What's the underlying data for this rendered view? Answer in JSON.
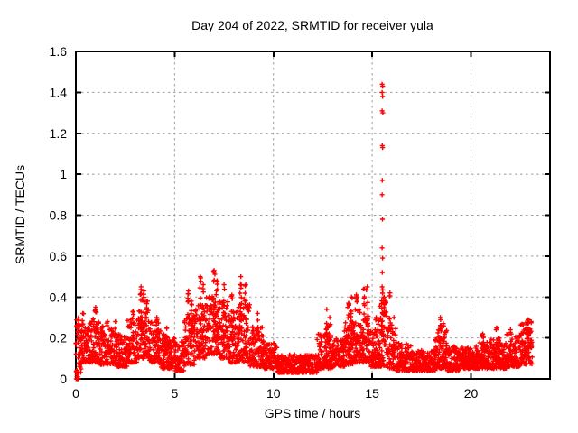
{
  "chart_data": {
    "type": "scatter",
    "title": "Day 204 of 2022, SRMTID for receiver yula",
    "xlabel": "GPS time / hours",
    "ylabel": "SRMTID / TECUs",
    "xlim": [
      0,
      24
    ],
    "ylim": [
      0,
      1.6
    ],
    "xticks": {
      "values": [
        0,
        5,
        10,
        15,
        20
      ],
      "labels": [
        "0",
        "5",
        "10",
        "15",
        "20"
      ]
    },
    "yticks": {
      "values": [
        0,
        0.2,
        0.4,
        0.6,
        0.8,
        1.0,
        1.2,
        1.4,
        1.6
      ],
      "labels": [
        "0",
        "0.2",
        "0.4",
        "0.6",
        "0.8",
        "1",
        "1.2",
        "1.4",
        "1.6"
      ]
    },
    "grid": "dashed",
    "legend": "none",
    "marker": {
      "shape": "plus",
      "color": "#ff0000",
      "size": 5
    },
    "colors": {
      "axis": "#000000",
      "grid": "#9e9e9e",
      "background": "#ffffff",
      "text": "#000000"
    },
    "seed": 20220204,
    "sample_step_hours": 0.011,
    "data_end_hour": 23.1,
    "baseline_bands": [
      [
        0.0,
        0.3,
        0.03,
        0.3
      ],
      [
        0.3,
        0.8,
        0.08,
        0.28
      ],
      [
        0.8,
        1.2,
        0.08,
        0.3
      ],
      [
        1.2,
        2.0,
        0.07,
        0.26
      ],
      [
        2.0,
        2.6,
        0.06,
        0.22
      ],
      [
        2.6,
        3.1,
        0.08,
        0.3
      ],
      [
        3.1,
        3.7,
        0.1,
        0.4
      ],
      [
        3.7,
        4.3,
        0.08,
        0.28
      ],
      [
        4.3,
        5.0,
        0.05,
        0.22
      ],
      [
        5.0,
        5.5,
        0.04,
        0.2
      ],
      [
        5.5,
        6.0,
        0.07,
        0.32
      ],
      [
        6.0,
        6.6,
        0.1,
        0.38
      ],
      [
        6.6,
        7.2,
        0.12,
        0.42
      ],
      [
        7.2,
        7.7,
        0.1,
        0.38
      ],
      [
        7.7,
        8.2,
        0.08,
        0.33
      ],
      [
        8.2,
        8.8,
        0.08,
        0.4
      ],
      [
        8.8,
        9.5,
        0.06,
        0.26
      ],
      [
        9.5,
        10.2,
        0.05,
        0.18
      ],
      [
        10.2,
        12.2,
        0.03,
        0.12
      ],
      [
        12.2,
        13.0,
        0.05,
        0.22
      ],
      [
        13.0,
        13.6,
        0.06,
        0.2
      ],
      [
        13.6,
        14.1,
        0.07,
        0.3
      ],
      [
        14.1,
        14.9,
        0.08,
        0.35
      ],
      [
        14.9,
        15.3,
        0.06,
        0.24
      ],
      [
        15.3,
        15.75,
        0.06,
        0.38
      ],
      [
        15.75,
        16.2,
        0.05,
        0.28
      ],
      [
        16.2,
        17.0,
        0.04,
        0.18
      ],
      [
        17.0,
        18.2,
        0.04,
        0.14
      ],
      [
        18.2,
        18.8,
        0.05,
        0.24
      ],
      [
        18.8,
        19.5,
        0.04,
        0.16
      ],
      [
        19.5,
        20.3,
        0.05,
        0.16
      ],
      [
        20.3,
        21.0,
        0.05,
        0.18
      ],
      [
        21.0,
        21.8,
        0.05,
        0.2
      ],
      [
        21.8,
        22.5,
        0.06,
        0.22
      ],
      [
        22.5,
        23.1,
        0.07,
        0.28
      ]
    ],
    "spike_clusters": [
      [
        0.35,
        0.32,
        5
      ],
      [
        1.0,
        0.35,
        7
      ],
      [
        1.6,
        0.28,
        4
      ],
      [
        2.0,
        0.28,
        4
      ],
      [
        2.9,
        0.33,
        6
      ],
      [
        3.3,
        0.45,
        12
      ],
      [
        3.45,
        0.43,
        9
      ],
      [
        3.6,
        0.38,
        7
      ],
      [
        4.1,
        0.3,
        5
      ],
      [
        4.6,
        0.25,
        4
      ],
      [
        5.7,
        0.43,
        9
      ],
      [
        5.85,
        0.38,
        6
      ],
      [
        6.3,
        0.5,
        11
      ],
      [
        6.45,
        0.46,
        8
      ],
      [
        7.0,
        0.53,
        12
      ],
      [
        7.15,
        0.48,
        8
      ],
      [
        7.5,
        0.46,
        9
      ],
      [
        7.9,
        0.41,
        7
      ],
      [
        8.35,
        0.5,
        11
      ],
      [
        8.6,
        0.46,
        9
      ],
      [
        9.2,
        0.32,
        5
      ],
      [
        12.7,
        0.34,
        7
      ],
      [
        12.85,
        0.3,
        5
      ],
      [
        13.8,
        0.37,
        7
      ],
      [
        13.95,
        0.4,
        7
      ],
      [
        14.2,
        0.41,
        7
      ],
      [
        14.6,
        0.44,
        10
      ],
      [
        14.75,
        0.45,
        9
      ],
      [
        15.2,
        0.3,
        5
      ],
      [
        15.5,
        0.45,
        12
      ],
      [
        15.6,
        0.4,
        8
      ],
      [
        15.9,
        0.42,
        7
      ],
      [
        16.1,
        0.3,
        4
      ],
      [
        18.45,
        0.3,
        7
      ],
      [
        18.6,
        0.27,
        5
      ],
      [
        20.6,
        0.22,
        4
      ],
      [
        21.3,
        0.25,
        5
      ],
      [
        22.0,
        0.24,
        4
      ],
      [
        22.9,
        0.29,
        8
      ],
      [
        23.05,
        0.28,
        6
      ]
    ],
    "outlier_points": [
      [
        15.5,
        1.44
      ],
      [
        15.53,
        1.43
      ],
      [
        15.5,
        1.4
      ],
      [
        15.53,
        1.38
      ],
      [
        15.5,
        1.31
      ],
      [
        15.54,
        1.3
      ],
      [
        15.51,
        1.14
      ],
      [
        15.53,
        1.13
      ],
      [
        15.51,
        0.97
      ],
      [
        15.5,
        0.9
      ],
      [
        15.52,
        0.78
      ],
      [
        15.5,
        0.64
      ],
      [
        15.53,
        0.59
      ],
      [
        15.51,
        0.52
      ]
    ],
    "zero_points": [
      [
        0.02,
        0.0
      ],
      [
        0.05,
        0.01
      ],
      [
        0.08,
        0.0
      ],
      [
        0.1,
        0.01
      ],
      [
        0.13,
        0.0
      ],
      [
        0.06,
        0.02
      ]
    ]
  }
}
